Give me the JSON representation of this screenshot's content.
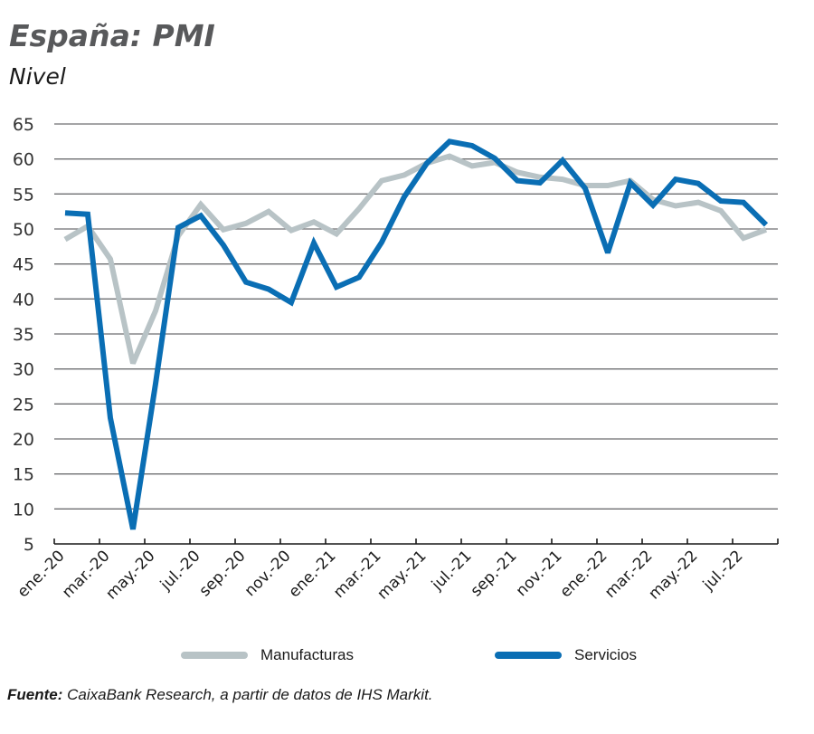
{
  "chart_data": {
    "type": "line",
    "title": "España: PMI",
    "subtitle": "Nivel",
    "xlabel": "",
    "ylabel": "",
    "ylim": [
      5,
      65
    ],
    "yticks": [
      5,
      10,
      15,
      20,
      25,
      30,
      35,
      40,
      45,
      50,
      55,
      60,
      65
    ],
    "grid": true,
    "legend_position": "bottom",
    "x": [
      "ene.-20",
      "feb.-20",
      "mar.-20",
      "abr.-20",
      "may.-20",
      "jun.-20",
      "jul.-20",
      "ago.-20",
      "sep.-20",
      "oct.-20",
      "nov.-20",
      "dic.-20",
      "ene.-21",
      "feb.-21",
      "mar.-21",
      "abr.-21",
      "may.-21",
      "jun.-21",
      "jul.-21",
      "ago.-21",
      "sep.-21",
      "oct.-21",
      "nov.-21",
      "dic.-21",
      "ene.-22",
      "feb.-22",
      "mar.-22",
      "abr.-22",
      "may.-22",
      "jun.-22",
      "jul.-22",
      "ago.-22"
    ],
    "xtick_labels": [
      "ene.-20",
      "mar.-20",
      "may.-20",
      "jul.-20",
      "sep.-20",
      "nov.-20",
      "ene.-21",
      "mar.-21",
      "may.-21",
      "jul.-21",
      "sep.-21",
      "nov.-21",
      "ene.-22",
      "mar.-22",
      "may.-22",
      "jul.-22"
    ],
    "series": [
      {
        "name": "Manufacturas",
        "color": "#b8c3c6",
        "values": [
          48.5,
          50.4,
          45.7,
          30.8,
          38.3,
          49.0,
          53.5,
          49.9,
          50.8,
          52.5,
          49.8,
          51.0,
          49.3,
          52.9,
          56.9,
          57.7,
          59.4,
          60.4,
          59.0,
          59.5,
          58.1,
          57.4,
          57.1,
          56.2,
          56.2,
          56.9,
          54.2,
          53.3,
          53.8,
          52.6,
          48.7,
          49.9
        ]
      },
      {
        "name": "Servicios",
        "color": "#0a6eb4",
        "values": [
          52.3,
          52.1,
          23.0,
          7.1,
          27.9,
          50.2,
          51.9,
          47.7,
          42.4,
          41.4,
          39.5,
          48.0,
          41.7,
          43.1,
          48.1,
          54.6,
          59.4,
          62.5,
          61.9,
          60.1,
          56.9,
          56.6,
          59.8,
          55.8,
          46.6,
          56.6,
          53.4,
          57.1,
          56.5,
          54.0,
          53.8,
          50.6
        ]
      }
    ]
  },
  "header": {
    "title": "España: PMI",
    "subtitle": "Nivel"
  },
  "legend": {
    "items": [
      {
        "label": "Manufacturas",
        "color": "#b8c3c6"
      },
      {
        "label": "Servicios",
        "color": "#0a6eb4"
      }
    ]
  },
  "source": {
    "label": "Fuente:",
    "text": " CaixaBank Research, a partir de datos de IHS Markit."
  }
}
